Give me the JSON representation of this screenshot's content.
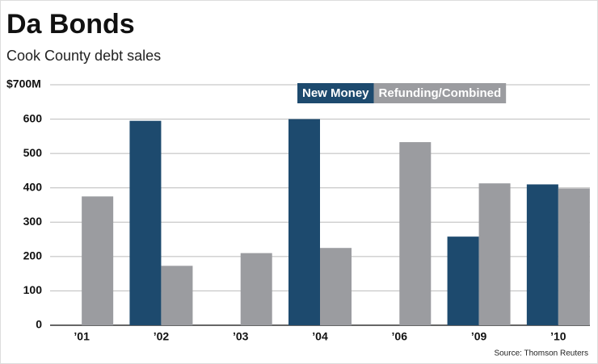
{
  "chart_data": {
    "type": "bar",
    "title": "Da Bonds",
    "subtitle": "Cook County debt sales",
    "source": "Source: Thomson Reuters",
    "categories": [
      "’01",
      "’02",
      "’03",
      "’04",
      "’06",
      "’09",
      "’10"
    ],
    "series": [
      {
        "name": "New Money",
        "color": "#1d4a6e",
        "values": [
          null,
          595,
          null,
          600,
          null,
          258,
          410
        ]
      },
      {
        "name": "Refunding/Combined",
        "color": "#9b9ca0",
        "values": [
          375,
          173,
          210,
          225,
          533,
          413,
          398
        ]
      }
    ],
    "ylim": [
      0,
      700
    ],
    "yticks": [
      0,
      100,
      200,
      300,
      400,
      500,
      600,
      {
        "value": 700,
        "label": "$700M"
      }
    ],
    "grid": true
  }
}
